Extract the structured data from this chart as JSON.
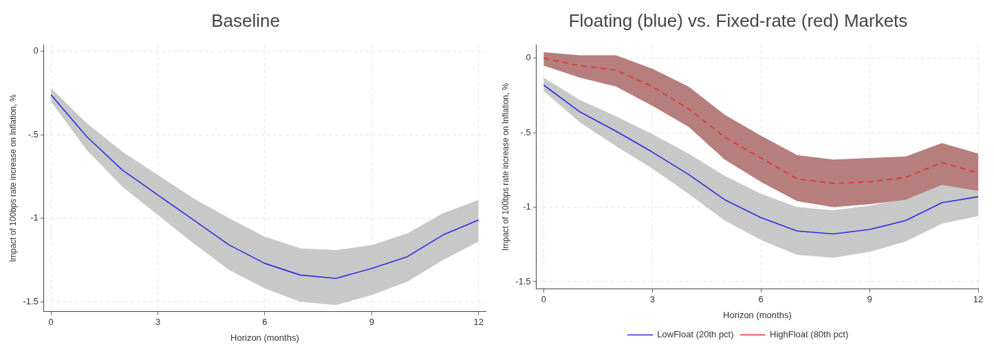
{
  "chart_data": [
    {
      "type": "line",
      "title": "Baseline",
      "xlabel": "Horizon (months)",
      "ylabel": "Impact of 100bps rate increase on Inflation, %",
      "x": [
        0,
        1,
        2,
        3,
        4,
        5,
        6,
        7,
        8,
        9,
        10,
        11,
        12
      ],
      "xlim": [
        -0.2,
        12.2
      ],
      "xticks": [
        0,
        3,
        6,
        9,
        12
      ],
      "ylim": [
        -1.56,
        0.04
      ],
      "yticks": [
        {
          "value": -1.5,
          "label": "-1.5"
        },
        {
          "value": -1,
          "label": "-1"
        },
        {
          "value": -0.5,
          "label": "-.5"
        },
        {
          "value": 0,
          "label": "0"
        }
      ],
      "grid": true,
      "marker": "none",
      "legend": false,
      "series": [
        {
          "color": "#2a2ae6",
          "line_style": "solid",
          "values": [
            -0.26,
            -0.51,
            -0.71,
            -0.86,
            -1.01,
            -1.16,
            -1.27,
            -1.34,
            -1.36,
            -1.3,
            -1.23,
            -1.1,
            -1.01
          ],
          "lower": [
            -0.3,
            -0.59,
            -0.81,
            -0.98,
            -1.15,
            -1.31,
            -1.42,
            -1.5,
            -1.52,
            -1.46,
            -1.38,
            -1.25,
            -1.14
          ],
          "upper": [
            -0.22,
            -0.43,
            -0.6,
            -0.74,
            -0.88,
            -1.0,
            -1.11,
            -1.18,
            -1.19,
            -1.16,
            -1.09,
            -0.97,
            -0.89
          ]
        }
      ]
    },
    {
      "type": "line",
      "title": "Floating (blue) vs. Fixed-rate (red) Markets",
      "xlabel": "Horizon (months)",
      "ylabel": "Impact of 100bps rate increase on Inflation, %",
      "x": [
        0,
        1,
        2,
        3,
        4,
        5,
        6,
        7,
        8,
        9,
        10,
        11,
        12
      ],
      "xlim": [
        -0.2,
        12.0
      ],
      "xticks": [
        0,
        3,
        6,
        9,
        12
      ],
      "ylim": [
        -1.55,
        0.09
      ],
      "yticks": [
        {
          "value": -1.5,
          "label": "-1.5"
        },
        {
          "value": -1,
          "label": "-1"
        },
        {
          "value": -0.5,
          "label": "-.5"
        },
        {
          "value": 0,
          "label": "0"
        }
      ],
      "grid": true,
      "marker": "none",
      "legend": "bottom",
      "series": [
        {
          "name": "LowFloat (20th pct)",
          "color": "#2a2ae6",
          "line_style": "solid",
          "values": [
            -0.18,
            -0.36,
            -0.49,
            -0.63,
            -0.78,
            -0.95,
            -1.07,
            -1.16,
            -1.18,
            -1.15,
            -1.09,
            -0.97,
            -0.93
          ],
          "lower": [
            -0.22,
            -0.43,
            -0.59,
            -0.74,
            -0.91,
            -1.09,
            -1.22,
            -1.32,
            -1.34,
            -1.3,
            -1.23,
            -1.11,
            -1.06
          ],
          "upper": [
            -0.13,
            -0.28,
            -0.39,
            -0.51,
            -0.64,
            -0.79,
            -0.91,
            -1.0,
            -1.02,
            -0.99,
            -0.94,
            -0.84,
            -0.89
          ]
        },
        {
          "name": "HighFloat (80th pct)",
          "color": "#e8302a",
          "line_style": "dashed",
          "values": [
            0.0,
            -0.05,
            -0.08,
            -0.19,
            -0.34,
            -0.53,
            -0.67,
            -0.81,
            -0.84,
            -0.83,
            -0.8,
            -0.7,
            -0.77
          ],
          "lower": [
            -0.05,
            -0.13,
            -0.19,
            -0.32,
            -0.46,
            -0.68,
            -0.83,
            -0.96,
            -1.0,
            -0.98,
            -0.95,
            -0.85,
            -0.89
          ],
          "upper": [
            0.04,
            0.02,
            0.02,
            -0.07,
            -0.19,
            -0.38,
            -0.52,
            -0.65,
            -0.68,
            -0.67,
            -0.66,
            -0.57,
            -0.64
          ]
        }
      ]
    }
  ]
}
